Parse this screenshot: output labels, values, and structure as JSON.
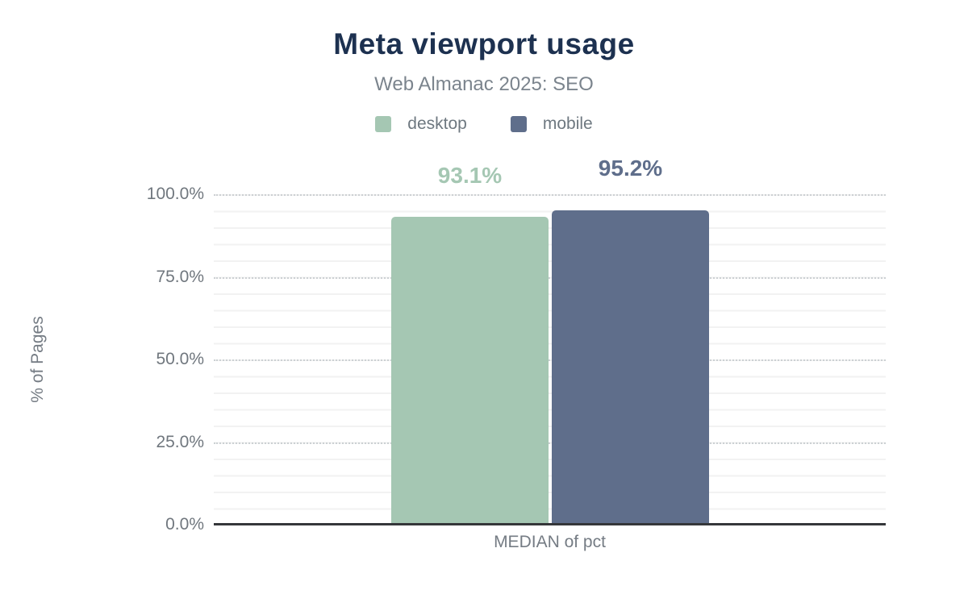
{
  "chart_data": {
    "type": "bar",
    "title": "Meta viewport usage",
    "subtitle": "Web Almanac 2025: SEO",
    "categories": [
      "MEDIAN of pct"
    ],
    "series": [
      {
        "name": "desktop",
        "values": [
          93.1
        ],
        "value_labels": [
          "93.1%"
        ],
        "color": "#a5c7b3"
      },
      {
        "name": "mobile",
        "values": [
          95.2
        ],
        "value_labels": [
          "95.2%"
        ],
        "color": "#5f6e8b"
      }
    ],
    "xlabel": "MEDIAN of pct",
    "ylabel": "% of Pages",
    "ylim": [
      0,
      100
    ],
    "y_ticks_top_to_bottom": [
      "100.0%",
      "75.0%",
      "50.0%",
      "25.0%",
      "0.0%"
    ],
    "grid": "minor solid lines every 5%, major dotted lines every 25%",
    "legend_position": "top",
    "colors": {
      "title": "#1d3150",
      "subtitle": "#7b848d",
      "tick_labels": "#70777e",
      "axis_line": "#35373a",
      "desktop": "#a5c7b3",
      "mobile": "#5f6e8b"
    }
  }
}
